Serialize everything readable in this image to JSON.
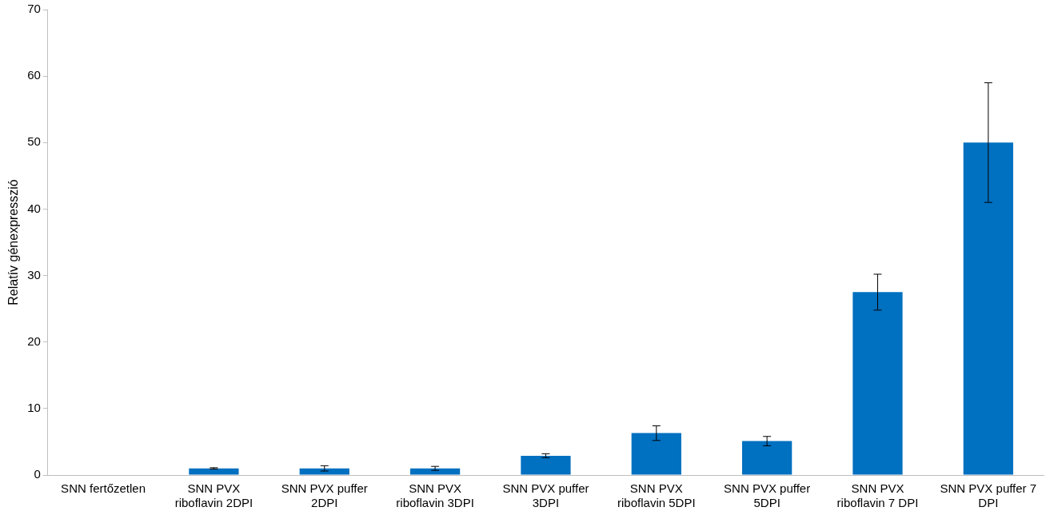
{
  "chart_data": {
    "type": "bar",
    "ylabel": "Relatív génexpresszió",
    "categories": [
      "SNN fertőzetlen",
      "SNN PVX riboflavin 2DPI",
      "SNN PVX puffer 2DPI",
      "SNN PVX riboflavin 3DPI",
      "SNN PVX puffer 3DPI",
      "SNN PVX riboflavin 5DPI",
      "SNN PVX puffer 5DPI",
      "SNN PVX riboflavin 7 DPI",
      "SNN PVX puffer 7 DPI"
    ],
    "values": [
      0,
      1,
      1,
      1,
      2.9,
      6.3,
      5.1,
      27.5,
      50
    ],
    "errors": [
      null,
      0.1,
      0.4,
      0.3,
      0.3,
      1.1,
      0.7,
      2.7,
      9
    ],
    "color": "#0070c0",
    "ylim": [
      0,
      70
    ],
    "yticks": [
      0,
      10,
      20,
      30,
      40,
      50,
      60,
      70
    ],
    "grid": false,
    "legend": false
  }
}
